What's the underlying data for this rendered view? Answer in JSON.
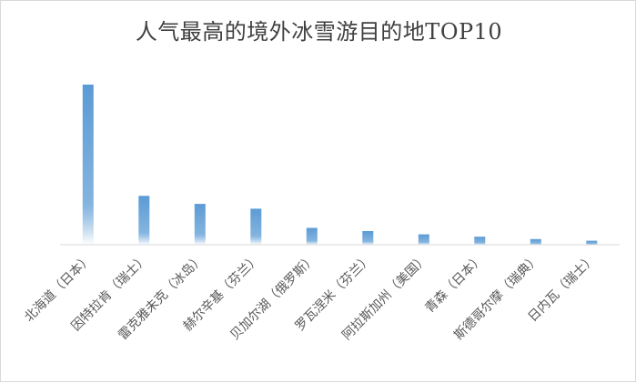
{
  "chart_data": {
    "type": "bar",
    "title": "人气最高的境外冰雪游目的地TOP10",
    "xlabel": "",
    "ylabel": "",
    "categories": [
      "北海道（日本）",
      "因特拉肯（瑞士）",
      "雷克雅未克（冰岛）",
      "赫尔辛基（芬兰）",
      "贝加尔湖（俄罗斯）",
      "罗瓦涅米（芬兰）",
      "阿拉斯加州（美国）",
      "青森（日本）",
      "斯德哥尔摩（瑞典）",
      "日内瓦（瑞士）"
    ],
    "series": [
      {
        "values": [
          100,
          30.5,
          25.5,
          22.5,
          10.5,
          8.5,
          6.5,
          5.0,
          3.5,
          2.5
        ]
      }
    ],
    "ylim": [
      0,
      100
    ],
    "grid": false,
    "bar_color_top": "#5b9bd5",
    "bar_color_bottom": "#ffffff",
    "axis_color": "#d9d9d9"
  }
}
